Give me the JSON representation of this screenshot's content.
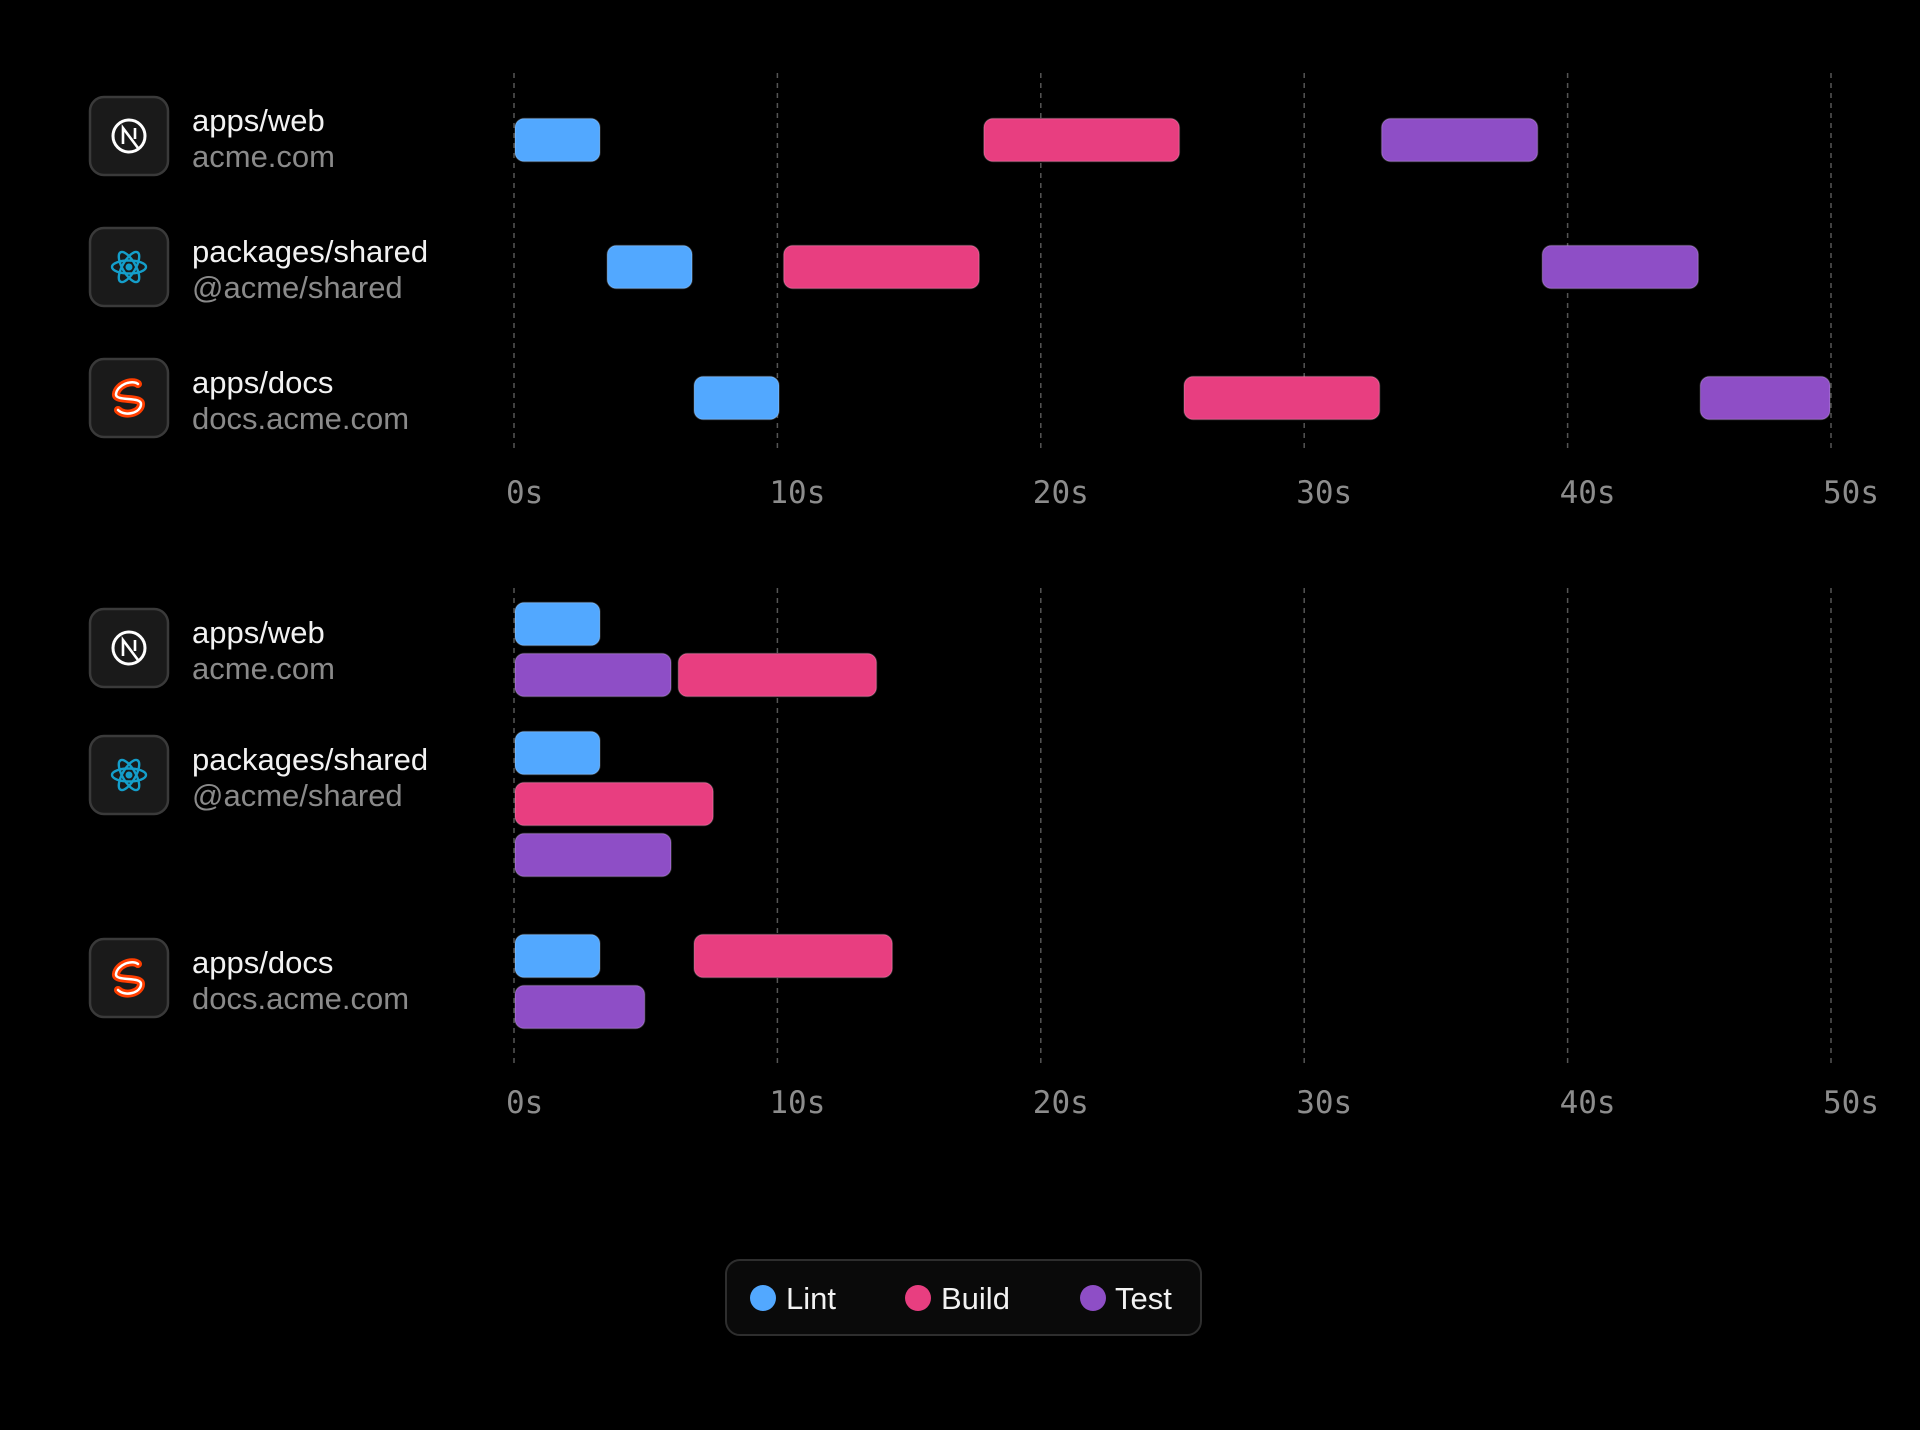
{
  "chart_data": [
    {
      "type": "gantt",
      "xlim": [
        0,
        50
      ],
      "x_ticks": [
        "0s",
        "10s",
        "20s",
        "30s",
        "40s",
        "50s"
      ],
      "grid": true,
      "rows": [
        {
          "title": "apps/web",
          "subtitle": "acme.com",
          "icon": "nextjs-icon",
          "tasks": [
            {
              "task": "Lint",
              "start": 0,
              "end": 3.3,
              "lane": 0
            },
            {
              "task": "Build",
              "start": 17.8,
              "end": 25.3,
              "lane": 0
            },
            {
              "task": "Test",
              "start": 32.9,
              "end": 38.9,
              "lane": 0
            }
          ]
        },
        {
          "title": "packages/shared",
          "subtitle": "@acme/shared",
          "icon": "react-icon",
          "tasks": [
            {
              "task": "Lint",
              "start": 3.5,
              "end": 6.8,
              "lane": 0
            },
            {
              "task": "Build",
              "start": 10.2,
              "end": 17.7,
              "lane": 0
            },
            {
              "task": "Test",
              "start": 39.0,
              "end": 45.0,
              "lane": 0
            }
          ]
        },
        {
          "title": "apps/docs",
          "subtitle": "docs.acme.com",
          "icon": "svelte-icon",
          "tasks": [
            {
              "task": "Lint",
              "start": 6.8,
              "end": 10.1,
              "lane": 0
            },
            {
              "task": "Build",
              "start": 25.4,
              "end": 32.9,
              "lane": 0
            },
            {
              "task": "Test",
              "start": 45.0,
              "end": 50.0,
              "lane": 0
            }
          ]
        }
      ]
    },
    {
      "type": "gantt",
      "xlim": [
        0,
        50
      ],
      "x_ticks": [
        "0s",
        "10s",
        "20s",
        "30s",
        "40s",
        "50s"
      ],
      "grid": true,
      "rows": [
        {
          "title": "apps/web",
          "subtitle": "acme.com",
          "icon": "nextjs-icon",
          "tasks": [
            {
              "task": "Lint",
              "start": 0,
              "end": 3.3,
              "lane": 0
            },
            {
              "task": "Test",
              "start": 0,
              "end": 6.0,
              "lane": 1
            },
            {
              "task": "Build",
              "start": 6.2,
              "end": 13.8,
              "lane": 1
            }
          ]
        },
        {
          "title": "packages/shared",
          "subtitle": "@acme/shared",
          "icon": "react-icon",
          "tasks": [
            {
              "task": "Lint",
              "start": 0,
              "end": 3.3,
              "lane": 0
            },
            {
              "task": "Build",
              "start": 0,
              "end": 7.6,
              "lane": 1
            },
            {
              "task": "Test",
              "start": 0,
              "end": 6.0,
              "lane": 2
            }
          ]
        },
        {
          "title": "apps/docs",
          "subtitle": "docs.acme.com",
          "icon": "svelte-icon",
          "tasks": [
            {
              "task": "Lint",
              "start": 0,
              "end": 3.3,
              "lane": 0
            },
            {
              "task": "Build",
              "start": 6.8,
              "end": 14.4,
              "lane": 0
            },
            {
              "task": "Test",
              "start": 0,
              "end": 5.0,
              "lane": 1
            }
          ]
        }
      ]
    }
  ],
  "legend": [
    {
      "label": "Lint",
      "color": "#52a8ff"
    },
    {
      "label": "Build",
      "color": "#e83e80"
    },
    {
      "label": "Test",
      "color": "#8e4ec6"
    }
  ],
  "colors": {
    "Lint": "#52a8ff",
    "Build": "#e83e80",
    "Test": "#8e4ec6"
  }
}
